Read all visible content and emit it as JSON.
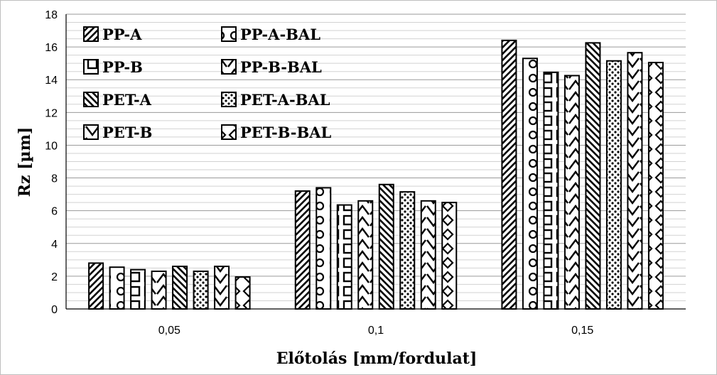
{
  "chart_data": {
    "type": "bar",
    "categories": [
      "0,05",
      "0,1",
      "0,15"
    ],
    "xlabel": "Előtolás [mm/fordulat]",
    "ylabel": "Rz [µm]",
    "ylim": [
      0,
      18
    ],
    "yticks": [
      "0",
      "2",
      "4",
      "6",
      "8",
      "10",
      "12",
      "14",
      "16",
      "18"
    ],
    "grid": true,
    "legend_position": "top-left",
    "series": [
      {
        "name": "PP-A",
        "pattern": "diagonal-hatch",
        "values": [
          2.8,
          7.2,
          16.4
        ]
      },
      {
        "name": "PP-A-BAL",
        "pattern": "circles",
        "values": [
          2.55,
          7.4,
          15.3
        ]
      },
      {
        "name": "PP-B",
        "pattern": "squares",
        "values": [
          2.4,
          6.35,
          14.45
        ]
      },
      {
        "name": "PP-B-BAL",
        "pattern": "chevron-up",
        "values": [
          2.3,
          6.6,
          14.25
        ]
      },
      {
        "name": "PET-A",
        "pattern": "backslash-hatch",
        "values": [
          2.6,
          7.6,
          16.25
        ]
      },
      {
        "name": "PET-A-BAL",
        "pattern": "dots",
        "values": [
          2.3,
          7.15,
          15.15
        ]
      },
      {
        "name": "PET-B",
        "pattern": "chevron-down",
        "values": [
          2.6,
          6.6,
          15.65
        ]
      },
      {
        "name": "PET-B-BAL",
        "pattern": "diamonds",
        "values": [
          1.95,
          6.5,
          15.05
        ]
      }
    ]
  }
}
